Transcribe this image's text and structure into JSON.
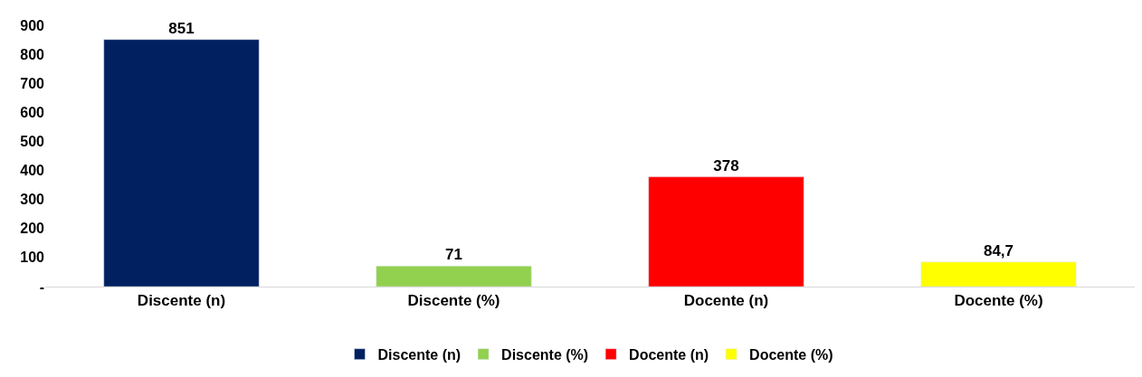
{
  "chart_data": {
    "type": "bar",
    "categories": [
      "Discente (n)",
      "Discente (%)",
      "Docente (n)",
      "Docente (%)"
    ],
    "series": [
      {
        "name": "Discente (n)",
        "color": "#002060",
        "values": [
          851,
          null,
          null,
          null
        ]
      },
      {
        "name": "Discente (%)",
        "color": "#92d050",
        "values": [
          null,
          71,
          null,
          null
        ]
      },
      {
        "name": "Docente (n)",
        "color": "#ff0000",
        "values": [
          null,
          null,
          378,
          null
        ]
      },
      {
        "name": "Docente (%)",
        "color": "#ffff00",
        "values": [
          null,
          null,
          null,
          84.7
        ]
      }
    ],
    "value_labels": [
      [
        "851",
        null,
        null,
        null
      ],
      [
        null,
        "71",
        null,
        null
      ],
      [
        null,
        null,
        "378",
        null
      ],
      [
        null,
        null,
        null,
        "84,7"
      ]
    ],
    "ylim": [
      0,
      900
    ],
    "yticks": [
      {
        "value": 0,
        "label": "-"
      },
      100,
      200,
      300,
      400,
      500,
      600,
      700,
      800,
      900
    ],
    "legend": "bottom"
  }
}
